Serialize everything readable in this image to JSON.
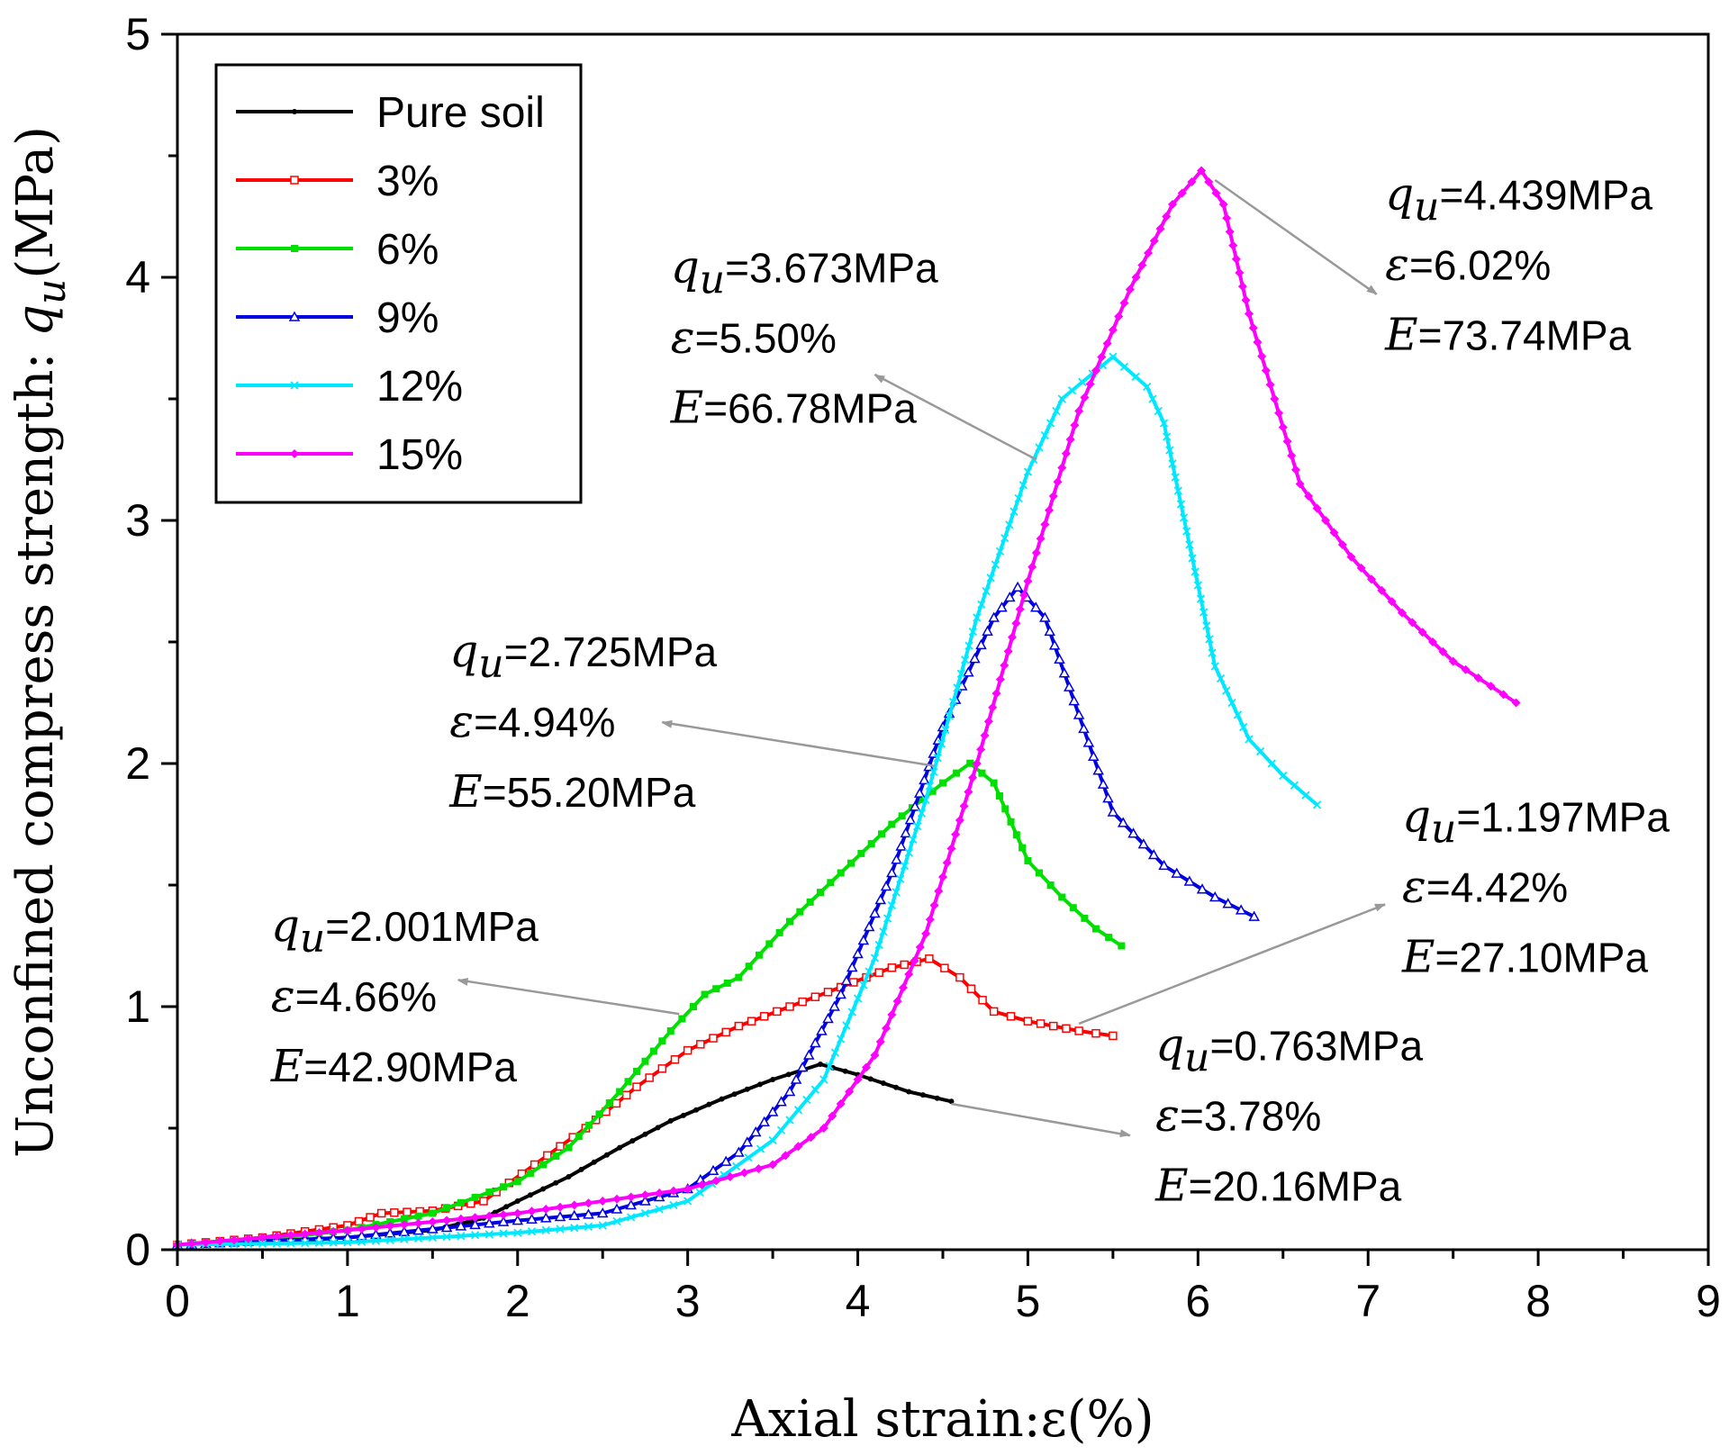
{
  "chart_data": {
    "type": "line",
    "title": "",
    "xlabel": "Axial strain:ε(%)",
    "ylabel": "Unconfined compress strength: qu(MPa)",
    "ylabel_prefix": "Unconfined compress strength: ",
    "ylabel_symbol": "q",
    "ylabel_subscript": "u",
    "ylabel_suffix": "(MPa)",
    "xlim": [
      0,
      9
    ],
    "ylim": [
      0,
      5
    ],
    "xticks": [
      "0",
      "1",
      "2",
      "3",
      "4",
      "5",
      "6",
      "7",
      "8",
      "9"
    ],
    "yticks": [
      "0",
      "1",
      "2",
      "3",
      "4",
      "5"
    ],
    "legend_position": "top-left",
    "series": [
      {
        "name": "Pure soil",
        "color": "#000000",
        "marker": "dot",
        "x": [
          0,
          0.5,
          1.0,
          1.5,
          1.8,
          2.0,
          2.3,
          2.6,
          2.9,
          3.2,
          3.5,
          3.78,
          4.0,
          4.3,
          4.55
        ],
        "y": [
          0.02,
          0.03,
          0.05,
          0.08,
          0.13,
          0.2,
          0.3,
          0.42,
          0.53,
          0.62,
          0.7,
          0.763,
          0.72,
          0.65,
          0.61
        ]
      },
      {
        "name": "3%",
        "color": "#ff0000",
        "marker": "square",
        "x": [
          0,
          0.5,
          1.0,
          1.2,
          1.5,
          1.8,
          2.1,
          2.4,
          2.7,
          3.0,
          3.3,
          3.6,
          3.9,
          4.2,
          4.42,
          4.6,
          4.8,
          5.0,
          5.3,
          5.5
        ],
        "y": [
          0.02,
          0.05,
          0.1,
          0.15,
          0.16,
          0.2,
          0.35,
          0.5,
          0.67,
          0.82,
          0.92,
          1.0,
          1.08,
          1.16,
          1.197,
          1.12,
          0.98,
          0.94,
          0.9,
          0.88
        ]
      },
      {
        "name": "6%",
        "color": "#00e000",
        "marker": "square-filled",
        "x": [
          0,
          0.5,
          1.0,
          1.5,
          2.0,
          2.3,
          2.6,
          2.9,
          3.1,
          3.3,
          3.6,
          3.9,
          4.2,
          4.5,
          4.66,
          4.8,
          5.0,
          5.2,
          5.4,
          5.55
        ],
        "y": [
          0.02,
          0.04,
          0.08,
          0.15,
          0.28,
          0.42,
          0.65,
          0.9,
          1.05,
          1.12,
          1.35,
          1.55,
          1.75,
          1.92,
          2.001,
          1.92,
          1.6,
          1.45,
          1.32,
          1.25
        ]
      },
      {
        "name": "9%",
        "color": "#0000e0",
        "marker": "triangle",
        "x": [
          0,
          1.0,
          2.0,
          2.5,
          3.0,
          3.3,
          3.6,
          3.9,
          4.2,
          4.5,
          4.8,
          4.94,
          5.1,
          5.3,
          5.5,
          5.8,
          6.1,
          6.33
        ],
        "y": [
          0.02,
          0.05,
          0.12,
          0.15,
          0.25,
          0.4,
          0.65,
          1.05,
          1.55,
          2.15,
          2.6,
          2.725,
          2.6,
          2.2,
          1.8,
          1.58,
          1.45,
          1.37
        ]
      },
      {
        "name": "12%",
        "color": "#00e8ff",
        "marker": "cross",
        "x": [
          0,
          1.0,
          2.0,
          2.5,
          3.0,
          3.5,
          3.8,
          4.1,
          4.4,
          4.7,
          5.0,
          5.2,
          5.5,
          5.7,
          5.8,
          5.95,
          6.1,
          6.3,
          6.5,
          6.7
        ],
        "y": [
          0.02,
          0.03,
          0.07,
          0.1,
          0.2,
          0.45,
          0.7,
          1.2,
          1.85,
          2.6,
          3.2,
          3.5,
          3.673,
          3.55,
          3.4,
          2.9,
          2.4,
          2.1,
          1.95,
          1.83
        ]
      },
      {
        "name": "15%",
        "color": "#ff00ff",
        "marker": "diamond",
        "x": [
          0,
          1.0,
          2.0,
          3.0,
          3.5,
          3.8,
          4.1,
          4.4,
          4.7,
          5.0,
          5.3,
          5.6,
          5.85,
          6.02,
          6.15,
          6.3,
          6.6,
          6.9,
          7.2,
          7.5,
          7.87
        ],
        "y": [
          0.02,
          0.08,
          0.15,
          0.25,
          0.35,
          0.5,
          0.8,
          1.3,
          2.0,
          2.75,
          3.45,
          3.95,
          4.3,
          4.439,
          4.3,
          3.85,
          3.15,
          2.85,
          2.62,
          2.42,
          2.25
        ]
      }
    ],
    "annotations": [
      {
        "series": "Pure soil",
        "qu": "=0.763MPa",
        "eps": "=3.78%",
        "E": "=20.16MPa",
        "arrow_from": [
          4.55,
          0.6
        ],
        "arrow_to": [
          5.6,
          0.47
        ],
        "text_pos": [
          5.75,
          0.78
        ]
      },
      {
        "series": "3%",
        "qu": "=1.197MPa",
        "eps": "=4.42%",
        "E": "=27.10MPa",
        "arrow_from": [
          5.3,
          0.93
        ],
        "arrow_to": [
          7.1,
          1.42
        ],
        "text_pos": [
          7.2,
          1.72
        ]
      },
      {
        "series": "6%",
        "qu": "=2.001MPa",
        "eps": "=4.66%",
        "E": "=42.90MPa",
        "arrow_from": [
          2.95,
          0.97
        ],
        "arrow_to": [
          1.65,
          1.11
        ],
        "text_pos": [
          0.55,
          1.27
        ]
      },
      {
        "series": "9%",
        "qu": "=2.725MPa",
        "eps": "=4.94%",
        "E": "=55.20MPa",
        "arrow_from": [
          4.45,
          1.99
        ],
        "arrow_to": [
          2.85,
          2.17
        ],
        "text_pos": [
          1.6,
          2.4
        ]
      },
      {
        "series": "12%",
        "qu": "=3.673MPa",
        "eps": "=5.50%",
        "E": "=66.78MPa",
        "arrow_from": [
          5.05,
          3.25
        ],
        "arrow_to": [
          4.1,
          3.6
        ],
        "text_pos": [
          2.9,
          3.98
        ]
      },
      {
        "series": "15%",
        "qu": "=4.439MPa",
        "eps": "=6.02%",
        "E": "=73.74MPa",
        "arrow_from": [
          6.1,
          4.4
        ],
        "arrow_to": [
          7.05,
          3.93
        ],
        "text_pos": [
          7.1,
          4.28
        ]
      }
    ]
  }
}
